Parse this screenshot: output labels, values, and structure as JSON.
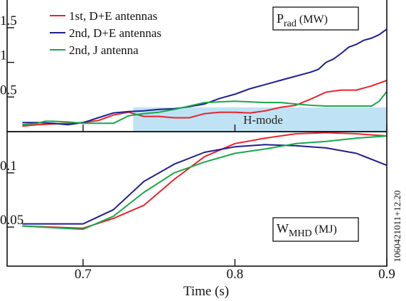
{
  "chart_data": [
    {
      "type": "line",
      "panel": "top",
      "quantity_label": "P",
      "quantity_subscript": "rad",
      "unit_label": "(MW)",
      "xlim": [
        0.65,
        0.9
      ],
      "ylim": [
        0,
        1.9
      ],
      "yticks": [
        {
          "value": 0.5,
          "label": "0.5"
        },
        {
          "value": 1.0,
          "label": "1"
        },
        {
          "value": 1.5,
          "label": "1.5"
        }
      ],
      "shaded_region": {
        "x_start": 0.733,
        "x_end": 0.9,
        "y_top": 0.35,
        "label": "H-mode",
        "color": "#bfe3f4"
      },
      "series": [
        {
          "name": "1st, D+E antennas",
          "color": "#e8242c",
          "x": [
            0.66,
            0.67,
            0.68,
            0.69,
            0.7,
            0.71,
            0.715,
            0.72,
            0.725,
            0.73,
            0.735,
            0.74,
            0.75,
            0.76,
            0.77,
            0.78,
            0.79,
            0.8,
            0.81,
            0.82,
            0.83,
            0.84,
            0.85,
            0.86,
            0.87,
            0.88,
            0.89,
            0.9
          ],
          "y": [
            0.08,
            0.1,
            0.11,
            0.12,
            0.13,
            0.16,
            0.2,
            0.24,
            0.26,
            0.28,
            0.25,
            0.22,
            0.22,
            0.2,
            0.2,
            0.26,
            0.28,
            0.28,
            0.27,
            0.3,
            0.35,
            0.38,
            0.47,
            0.57,
            0.6,
            0.6,
            0.66,
            0.74
          ]
        },
        {
          "name": "2nd, D+E antennas",
          "color": "#1f1f8f",
          "x": [
            0.66,
            0.67,
            0.68,
            0.69,
            0.7,
            0.71,
            0.72,
            0.73,
            0.74,
            0.75,
            0.76,
            0.77,
            0.78,
            0.79,
            0.8,
            0.805,
            0.81,
            0.82,
            0.83,
            0.84,
            0.85,
            0.855,
            0.86,
            0.865,
            0.87,
            0.875,
            0.88,
            0.885,
            0.89,
            0.895,
            0.9
          ],
          "y": [
            0.13,
            0.13,
            0.12,
            0.1,
            0.13,
            0.2,
            0.27,
            0.29,
            0.3,
            0.32,
            0.33,
            0.36,
            0.4,
            0.48,
            0.54,
            0.58,
            0.62,
            0.68,
            0.74,
            0.8,
            0.86,
            0.9,
            1.0,
            1.05,
            1.13,
            1.22,
            1.26,
            1.32,
            1.35,
            1.4,
            1.48
          ]
        },
        {
          "name": "2nd, J antenna",
          "color": "#17a84a",
          "x": [
            0.66,
            0.67,
            0.675,
            0.68,
            0.69,
            0.7,
            0.71,
            0.72,
            0.73,
            0.74,
            0.75,
            0.76,
            0.77,
            0.78,
            0.79,
            0.8,
            0.81,
            0.82,
            0.83,
            0.84,
            0.85,
            0.86,
            0.87,
            0.88,
            0.89,
            0.895,
            0.9
          ],
          "y": [
            0.1,
            0.12,
            0.15,
            0.15,
            0.14,
            0.12,
            0.12,
            0.12,
            0.23,
            0.26,
            0.28,
            0.32,
            0.37,
            0.42,
            0.43,
            0.44,
            0.43,
            0.42,
            0.42,
            0.4,
            0.38,
            0.37,
            0.37,
            0.37,
            0.37,
            0.44,
            0.58
          ]
        }
      ]
    },
    {
      "type": "line",
      "panel": "bottom",
      "quantity_label": "W",
      "quantity_subscript": "MHD",
      "unit_label": "(MJ)",
      "xlabel": "Time (s)",
      "xlim": [
        0.65,
        0.9
      ],
      "ylim": [
        0.014,
        0.138
      ],
      "xticks": [
        {
          "value": 0.7,
          "label": "0.7"
        },
        {
          "value": 0.8,
          "label": "0.8"
        },
        {
          "value": 0.9,
          "label": "0.9"
        }
      ],
      "yticks": [
        {
          "value": 0.05,
          "label": "0.05"
        },
        {
          "value": 0.1,
          "label": "0.1"
        }
      ],
      "series": [
        {
          "name": "1st, D+E antennas",
          "color": "#e8242c",
          "x": [
            0.66,
            0.7,
            0.72,
            0.74,
            0.76,
            0.78,
            0.8,
            0.82,
            0.84,
            0.86,
            0.88,
            0.9
          ],
          "y": [
            0.051,
            0.049,
            0.058,
            0.07,
            0.094,
            0.115,
            0.127,
            0.132,
            0.136,
            0.137,
            0.136,
            0.134
          ]
        },
        {
          "name": "2nd, D+E antennas",
          "color": "#1f1f8f",
          "x": [
            0.66,
            0.7,
            0.72,
            0.74,
            0.76,
            0.78,
            0.8,
            0.82,
            0.84,
            0.86,
            0.88,
            0.9
          ],
          "y": [
            0.053,
            0.053,
            0.066,
            0.092,
            0.108,
            0.119,
            0.124,
            0.126,
            0.125,
            0.123,
            0.118,
            0.107
          ]
        },
        {
          "name": "2nd, J antenna",
          "color": "#17a84a",
          "x": [
            0.66,
            0.7,
            0.72,
            0.74,
            0.76,
            0.78,
            0.8,
            0.82,
            0.84,
            0.86,
            0.88,
            0.9
          ],
          "y": [
            0.051,
            0.048,
            0.06,
            0.082,
            0.1,
            0.11,
            0.118,
            0.122,
            0.127,
            0.129,
            0.132,
            0.134
          ]
        }
      ]
    }
  ],
  "side_label": "1060421011+12.20"
}
